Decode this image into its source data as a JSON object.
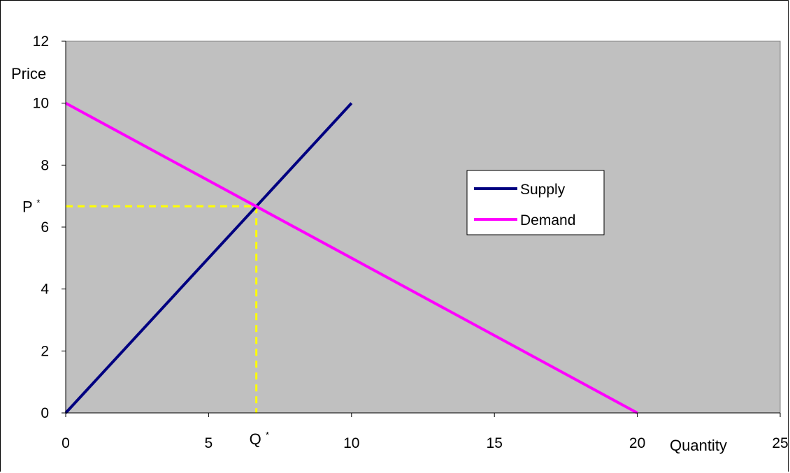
{
  "chart_data": {
    "type": "line",
    "xlabel": "Quantity",
    "ylabel": "Price",
    "xlim": [
      0,
      25
    ],
    "ylim": [
      0,
      12
    ],
    "x_ticks": [
      "0",
      "5",
      "10",
      "15",
      "20",
      "25"
    ],
    "y_ticks": [
      "0",
      "2",
      "4",
      "6",
      "8",
      "10",
      "12"
    ],
    "grid": false,
    "legend_position": "right",
    "plot_background": "#c0c0c0",
    "series": [
      {
        "name": "Supply",
        "color": "#000080",
        "points": [
          [
            0,
            0
          ],
          [
            10,
            10
          ]
        ]
      },
      {
        "name": "Demand",
        "color": "#ff00ff",
        "points": [
          [
            0,
            10
          ],
          [
            20,
            0
          ]
        ]
      }
    ],
    "equilibrium": {
      "x": 6.67,
      "y": 6.67,
      "x_label": "Q",
      "y_label": "P",
      "marker": "*",
      "guide_color": "#ffff00"
    }
  }
}
